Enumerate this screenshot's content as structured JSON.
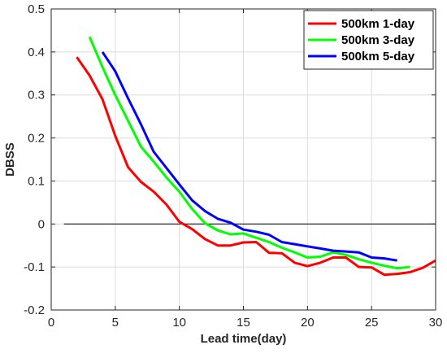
{
  "chart_data": {
    "type": "line",
    "title": "",
    "xlabel": "Lead time(day)",
    "ylabel": "DBSS",
    "xlim": [
      0,
      30
    ],
    "ylim": [
      -0.2,
      0.5
    ],
    "xticks": [
      0,
      5,
      10,
      15,
      20,
      25,
      30
    ],
    "yticks": [
      -0.2,
      -0.1,
      0,
      0.1,
      0.2,
      0.3,
      0.4,
      0.5
    ],
    "grid": true,
    "legend_position": "top-right",
    "zero_line": true,
    "series": [
      {
        "name": "500km 1-day",
        "color": "#ff0000",
        "x": [
          2,
          3,
          4,
          5,
          6,
          7,
          8,
          9,
          10,
          11,
          12,
          13,
          14,
          15,
          16,
          17,
          18,
          19,
          20,
          21,
          22,
          23,
          24,
          25,
          26,
          27,
          28,
          29,
          30
        ],
        "y": [
          0.388,
          0.345,
          0.29,
          0.205,
          0.132,
          0.098,
          0.075,
          0.045,
          0.005,
          -0.012,
          -0.035,
          -0.05,
          -0.05,
          -0.043,
          -0.042,
          -0.067,
          -0.068,
          -0.09,
          -0.098,
          -0.09,
          -0.078,
          -0.078,
          -0.1,
          -0.101,
          -0.118,
          -0.116,
          -0.112,
          -0.102,
          -0.085
        ]
      },
      {
        "name": "500km 3-day",
        "color": "#00ff00",
        "x": [
          3,
          4,
          5,
          6,
          7,
          8,
          9,
          10,
          11,
          12,
          13,
          14,
          15,
          16,
          17,
          18,
          19,
          20,
          21,
          22,
          23,
          24,
          25,
          26,
          27,
          28
        ],
        "y": [
          0.435,
          0.365,
          0.3,
          0.24,
          0.18,
          0.145,
          0.108,
          0.075,
          0.035,
          0.002,
          -0.015,
          -0.024,
          -0.022,
          -0.032,
          -0.042,
          -0.055,
          -0.066,
          -0.078,
          -0.076,
          -0.066,
          -0.072,
          -0.082,
          -0.09,
          -0.097,
          -0.103,
          -0.1
        ]
      },
      {
        "name": "500km 5-day",
        "color": "#0000ff",
        "x": [
          4,
          5,
          6,
          7,
          8,
          9,
          10,
          11,
          12,
          13,
          14,
          15,
          16,
          17,
          18,
          19,
          20,
          21,
          22,
          23,
          24,
          25,
          26,
          27
        ],
        "y": [
          0.4,
          0.355,
          0.292,
          0.232,
          0.168,
          0.13,
          0.092,
          0.055,
          0.03,
          0.012,
          0.003,
          -0.013,
          -0.018,
          -0.025,
          -0.042,
          -0.047,
          -0.052,
          -0.057,
          -0.062,
          -0.064,
          -0.066,
          -0.078,
          -0.08,
          -0.085
        ]
      }
    ]
  }
}
